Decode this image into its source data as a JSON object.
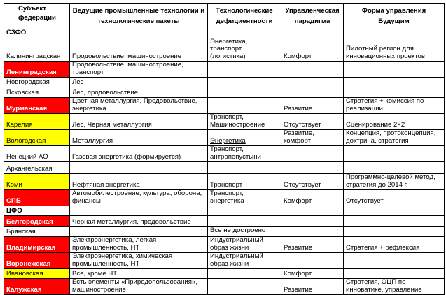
{
  "headers": [
    "Субъект федерации",
    "Ведущие промышленные технологии и технологические пакеты",
    "Технологические дефициентности",
    "Управленческая парадигма",
    "Форма управления Будущим"
  ],
  "colors": {
    "red": "#ff0000",
    "yellow": "#ffff00"
  },
  "rows": [
    {
      "c": [
        "СЗФО",
        "",
        "",
        "",
        ""
      ],
      "hl": "group"
    },
    {
      "c": [
        "Калининградская",
        "Продовольствие, машиностроение",
        "Энергетика, транспорт (логистика)",
        "Комфорт",
        "Пилотный регион для инновационных проектов"
      ],
      "hl": ""
    },
    {
      "c": [
        "Ленинградская",
        "Продовольствие, машиностроение, транспорт",
        "",
        "",
        ""
      ],
      "hl": "red"
    },
    {
      "c": [
        "Новгородская",
        "Лес",
        "",
        "",
        ""
      ],
      "hl": ""
    },
    {
      "c": [
        "Псковская",
        "Лес, продовольствие",
        "",
        "",
        ""
      ],
      "hl": ""
    },
    {
      "c": [
        "Мурманская",
        "Цветная металлургия, Продовольствие, энергетика",
        "",
        "Развитие",
        "Стратегия + комиссия по реализации"
      ],
      "hl": "red"
    },
    {
      "c": [
        "Карелия",
        "Лес, Черная металлургия",
        "Транспорт, Машиностроение",
        "Отсутствует",
        "Сценирование 2×2"
      ],
      "hl": "yellow"
    },
    {
      "c": [
        "Вологодская",
        "Металлургия",
        "Энергетика",
        "Развитие, комфорт",
        "Концепция, протоконцепция, доктрина, стратегия"
      ],
      "hl": "yellow"
    },
    {
      "c": [
        "Ненецкий АО",
        "Газовая энергетика (формируется)",
        "Транспорт, антропопустыни",
        "",
        ""
      ],
      "hl": ""
    },
    {
      "c": [
        "Архангельская",
        "",
        "",
        "",
        ""
      ],
      "hl": ""
    },
    {
      "c": [
        "Коми",
        "Нефтяная энергетика",
        "Транспорт",
        "Отсутствует",
        "Программно-целевой метод, стратегия до 2014 г."
      ],
      "hl": "yellow"
    },
    {
      "c": [
        "СПБ",
        "Автомобилестроение, культура, оборона, финансы",
        "Транспорт, энергетика",
        "Комфорт",
        "Отсутствует"
      ],
      "hl": "red"
    },
    {
      "c": [
        "ЦФО",
        "",
        "",
        "",
        ""
      ],
      "hl": "group"
    },
    {
      "c": [
        "Белгородская",
        "Черная металлургия, продовольствие",
        "",
        "",
        ""
      ],
      "hl": "red"
    },
    {
      "c": [
        "Брянская",
        "",
        "Все не достроено",
        "",
        ""
      ],
      "hl": ""
    },
    {
      "c": [
        "Владимирская",
        "Электроэнергетика, легкая промышленность, НТ",
        "Индустриальный образ жизни",
        "Развитие",
        "Стратегия + рефлексия"
      ],
      "hl": "red"
    },
    {
      "c": [
        "Воронежская",
        "Электроэнергетика, химическая промышленность, НТ",
        "Индустриальный образ жизни",
        "",
        ""
      ],
      "hl": "red"
    },
    {
      "c": [
        "Ивановская",
        "Все, кроме НТ",
        "",
        "Комфорт",
        ""
      ],
      "hl": "yellow"
    },
    {
      "c": [
        "Калужская",
        "Есть элементы «Природопользования», машиностроение",
        "",
        "Развитие",
        "Стратегия, ОЦП по инноватике, управление"
      ],
      "hl": "red"
    }
  ]
}
